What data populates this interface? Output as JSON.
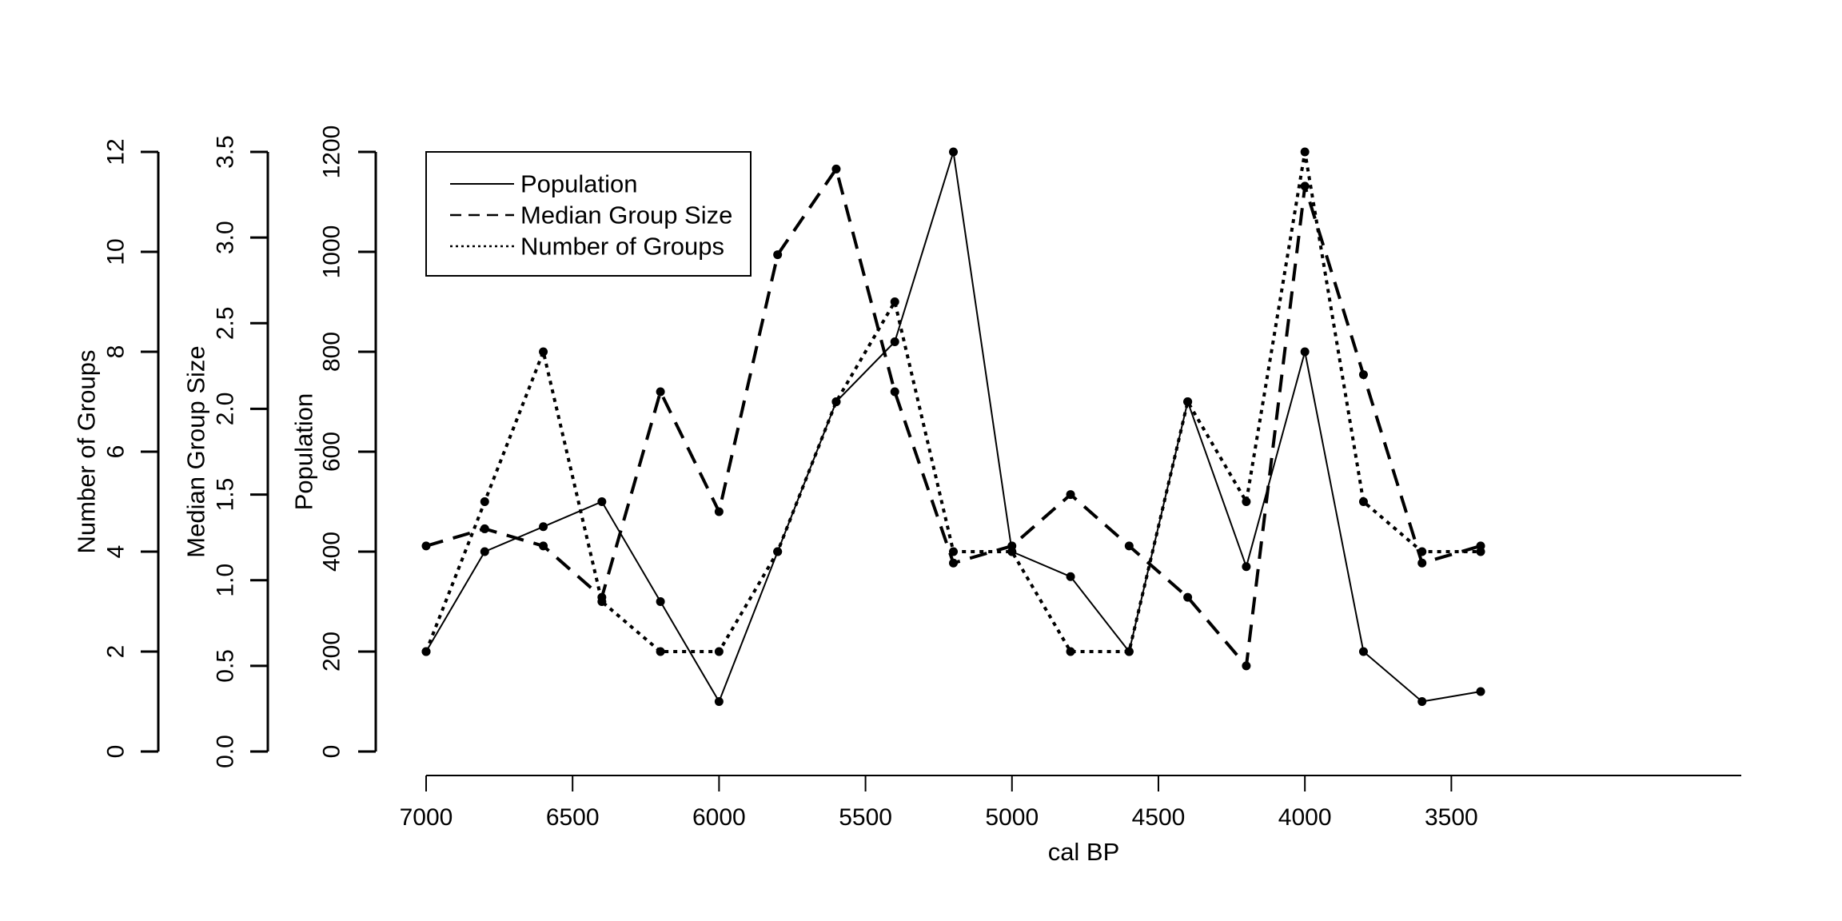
{
  "chart_data": {
    "type": "line",
    "xlabel": "cal BP",
    "x": [
      7000,
      6800,
      6600,
      6400,
      6200,
      6000,
      5800,
      5600,
      5400,
      5200,
      5000,
      4800,
      4600,
      4400,
      4200,
      4000,
      3800,
      3600,
      3400
    ],
    "x_ticks": [
      7000,
      6500,
      6000,
      5500,
      5000,
      4500,
      4000,
      3500
    ],
    "xlim": [
      7000,
      3250
    ],
    "x_reversed": true,
    "series": [
      {
        "name": "Population",
        "axis": "Population",
        "values": [
          200,
          400,
          450,
          500,
          300,
          100,
          400,
          700,
          820,
          1200,
          400,
          350,
          200,
          700,
          370,
          800,
          200,
          100,
          120
        ]
      },
      {
        "name": "Median Group Size",
        "axis": "Median Group Size",
        "values": [
          1.2,
          1.3,
          1.2,
          0.9,
          2.1,
          1.4,
          2.9,
          3.4,
          2.1,
          1.1,
          1.2,
          1.5,
          1.2,
          0.9,
          0.5,
          3.3,
          2.2,
          1.1,
          1.2
        ]
      },
      {
        "name": "Number of Groups",
        "axis": "Number of Groups",
        "values": [
          2,
          5,
          8,
          3,
          2,
          2,
          4,
          7,
          9,
          4,
          4,
          2,
          2,
          7,
          5,
          12,
          5,
          4,
          4
        ]
      }
    ],
    "axes": [
      {
        "key": "Population",
        "label": "Population",
        "ylim": [
          0,
          1200
        ],
        "ticks": [
          0,
          200,
          400,
          600,
          800,
          1000,
          1200
        ],
        "tick_labels": [
          "0",
          "200",
          "400",
          "600",
          "800",
          "1000",
          "1200"
        ]
      },
      {
        "key": "Median Group Size",
        "label": "Median Group Size",
        "ylim": [
          0,
          3.5
        ],
        "ticks": [
          0,
          0.5,
          1,
          1.5,
          2,
          2.5,
          3,
          3.5
        ],
        "tick_labels": [
          "0.0",
          "0.5",
          "1.0",
          "1.5",
          "2.0",
          "2.5",
          "3.0",
          "3.5"
        ]
      },
      {
        "key": "Number of Groups",
        "label": "Number of Groups",
        "ylim": [
          0,
          12
        ],
        "ticks": [
          0,
          2,
          4,
          6,
          8,
          10,
          12
        ],
        "tick_labels": [
          "0",
          "2",
          "4",
          "6",
          "8",
          "10",
          "12"
        ]
      }
    ],
    "legend": {
      "placement": "top-left",
      "entries": [
        "Population",
        "Median Group Size",
        "Number of Groups"
      ]
    },
    "grid": false
  }
}
